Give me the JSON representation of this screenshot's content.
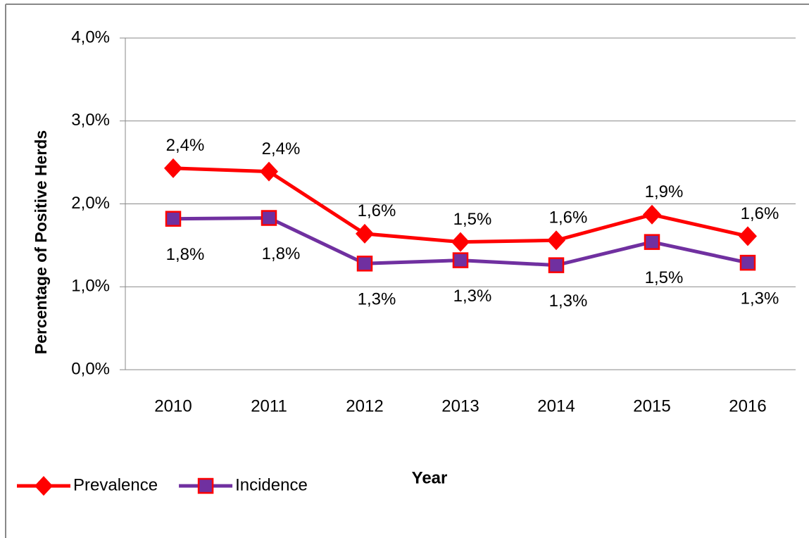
{
  "chart_data": {
    "type": "line",
    "x_label": "Year",
    "y_label": "Percentage of Positive Herds",
    "categories": [
      "2010",
      "2011",
      "2012",
      "2013",
      "2014",
      "2015",
      "2016"
    ],
    "series": [
      {
        "name": "Prevalence",
        "color": "#ff0000",
        "marker": "diamond",
        "values": [
          2.43,
          2.39,
          1.64,
          1.54,
          1.56,
          1.87,
          1.61
        ],
        "value_labels": [
          "2,4%",
          "2,4%",
          "1,6%",
          "1,5%",
          "1,6%",
          "1,9%",
          "1,6%"
        ]
      },
      {
        "name": "Incidence",
        "color": "#7030a0",
        "marker": "square",
        "values": [
          1.82,
          1.83,
          1.28,
          1.32,
          1.26,
          1.54,
          1.29
        ],
        "value_labels": [
          "1,8%",
          "1,8%",
          "1,3%",
          "1,3%",
          "1,3%",
          "1,5%",
          "1,3%"
        ]
      }
    ],
    "ylim": [
      0,
      4
    ],
    "yticks": [
      {
        "value": 0,
        "label": "0,0%"
      },
      {
        "value": 1,
        "label": "1,0%"
      },
      {
        "value": 2,
        "label": "2,0%"
      },
      {
        "value": 3,
        "label": "3,0%"
      },
      {
        "value": 4,
        "label": "4,0%"
      }
    ],
    "grid": true,
    "legend": "bottom-left"
  }
}
